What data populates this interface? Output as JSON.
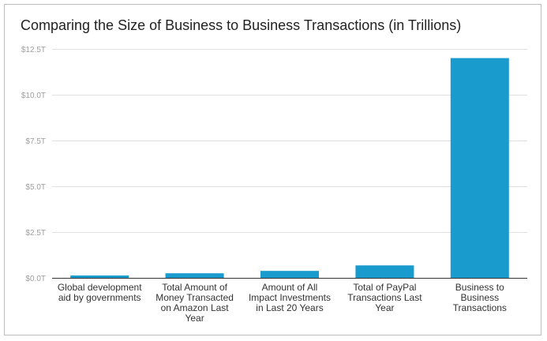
{
  "chart_data": {
    "type": "bar",
    "title": "Comparing the Size of Business to Business Transactions (in Trillions)",
    "xlabel": "",
    "ylabel": "",
    "categories": [
      [
        "Global development",
        "aid by governments"
      ],
      [
        "Total Amount of",
        "Money Transacted",
        "on Amazon Last",
        "Year"
      ],
      [
        "Amount of All",
        "Impact Investments",
        "in Last 20 Years"
      ],
      [
        "Total of PayPal",
        "Transactions Last",
        "Year"
      ],
      [
        "Business to",
        "Business",
        "Transactions"
      ]
    ],
    "values": [
      0.13,
      0.25,
      0.38,
      0.68,
      12.0
    ],
    "ylim": [
      0,
      12.5
    ],
    "yticks": [
      0,
      2.5,
      5.0,
      7.5,
      10.0,
      12.5
    ],
    "ytick_labels": [
      "$0.0T",
      "$2.5T",
      "$5.0T",
      "$7.5T",
      "$10.0T",
      "$12.5T"
    ],
    "bar_color": "#1a9bce",
    "grid": true
  }
}
